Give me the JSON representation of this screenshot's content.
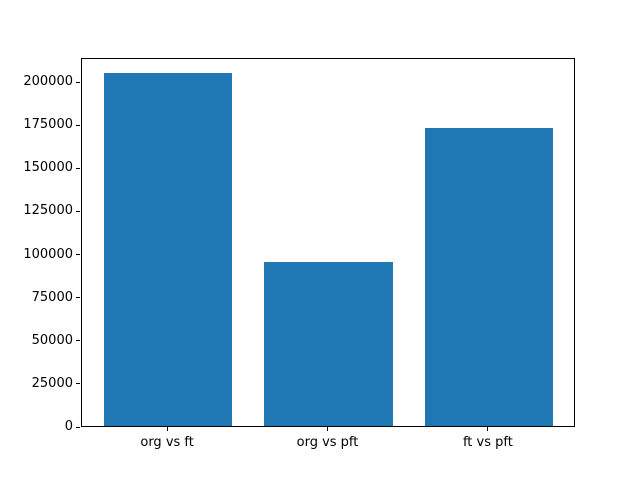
{
  "chart_data": {
    "type": "bar",
    "title": "",
    "xlabel": "",
    "ylabel": "",
    "categories": [
      "org vs ft",
      "org vs pft",
      "ft vs pft"
    ],
    "values": [
      204500,
      95300,
      173100
    ],
    "ylim": [
      0,
      214000
    ],
    "yticks": [
      0,
      25000,
      50000,
      75000,
      100000,
      125000,
      150000,
      175000,
      200000
    ],
    "bar_color": "#1f77b4",
    "bar_width_fraction": 0.8,
    "grid": false,
    "legend_position": "none"
  }
}
